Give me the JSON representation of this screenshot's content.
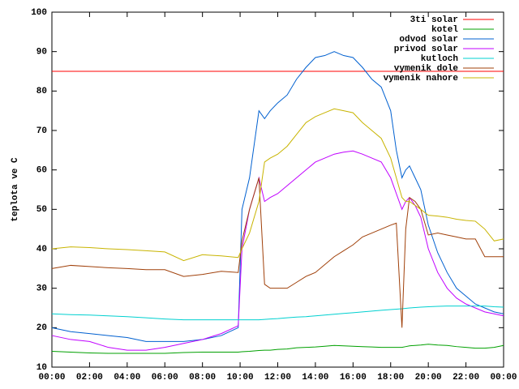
{
  "chart_data": {
    "type": "line",
    "ylabel": "teplota ve C",
    "x": [
      0,
      1,
      2,
      3,
      4,
      5,
      6,
      7,
      8,
      9,
      9.9,
      10.1,
      10.5,
      11,
      11.3,
      11.6,
      12,
      12.5,
      13,
      13.5,
      14,
      14.5,
      15,
      15.5,
      16,
      16.5,
      17,
      17.5,
      18,
      18.3,
      18.6,
      18.8,
      19,
      19.3,
      19.6,
      20,
      20.5,
      21,
      21.5,
      22,
      22.5,
      23,
      23.5,
      24
    ],
    "xlim": [
      0,
      24
    ],
    "xticks": [
      {
        "value": 0,
        "label": "00:00"
      },
      {
        "value": 2,
        "label": "02:00"
      },
      {
        "value": 4,
        "label": "04:00"
      },
      {
        "value": 6,
        "label": "06:00"
      },
      {
        "value": 8,
        "label": "08:00"
      },
      {
        "value": 10,
        "label": "10:00"
      },
      {
        "value": 12,
        "label": "12:00"
      },
      {
        "value": 14,
        "label": "14:00"
      },
      {
        "value": 16,
        "label": "16:00"
      },
      {
        "value": 18,
        "label": "18:00"
      },
      {
        "value": 20,
        "label": "20:00"
      },
      {
        "value": 22,
        "label": "22:00"
      },
      {
        "value": 24,
        "label": "00:00"
      }
    ],
    "ylim": [
      10,
      100
    ],
    "yticks": [
      10,
      20,
      30,
      40,
      50,
      60,
      70,
      80,
      90,
      100
    ],
    "legend": "top-right",
    "series": [
      {
        "name": "3ti solar",
        "color": "#ff0000",
        "values": [
          85,
          85,
          85,
          85,
          85,
          85,
          85,
          85,
          85,
          85,
          85,
          85,
          85,
          85,
          85,
          85,
          85,
          85,
          85,
          85,
          85,
          85,
          85,
          85,
          85,
          85,
          85,
          85,
          85,
          85,
          85,
          85,
          85,
          85,
          85,
          85,
          85,
          85,
          85,
          85,
          85,
          85,
          85,
          85
        ]
      },
      {
        "name": "kotel",
        "color": "#00a000",
        "values": [
          14,
          13.8,
          13.6,
          13.5,
          13.5,
          13.5,
          13.5,
          13.7,
          13.8,
          13.8,
          13.8,
          13.9,
          14,
          14.2,
          14.3,
          14.3,
          14.5,
          14.6,
          14.9,
          15,
          15.1,
          15.3,
          15.5,
          15.4,
          15.3,
          15.2,
          15.1,
          15,
          15,
          15,
          15,
          15.2,
          15.4,
          15.5,
          15.6,
          15.8,
          15.6,
          15.5,
          15.2,
          15,
          14.8,
          14.8,
          15,
          15.5
        ]
      },
      {
        "name": "odvod solar",
        "color": "#0060d0",
        "values": [
          20,
          19,
          18.5,
          18,
          17.5,
          16.5,
          16.5,
          16.5,
          17,
          18,
          20,
          50,
          58,
          75,
          73,
          75,
          77,
          79,
          83,
          86,
          88.5,
          89,
          90,
          89,
          88.5,
          86,
          83,
          81,
          75,
          65,
          58,
          60,
          61,
          58,
          55,
          46,
          39,
          34,
          30,
          28,
          26,
          25,
          24,
          23.5
        ]
      },
      {
        "name": "privod solar",
        "color": "#c000ff",
        "values": [
          18,
          17,
          16.5,
          15,
          14.3,
          14.3,
          15,
          16,
          17,
          18.5,
          20.5,
          40,
          50,
          58,
          52,
          53,
          54,
          56,
          58,
          60,
          62,
          63,
          64,
          64.5,
          64.8,
          64,
          63,
          62,
          58,
          54,
          50,
          52,
          53,
          51,
          48,
          40,
          34,
          30,
          27.5,
          26,
          25,
          24,
          23.5,
          23
        ]
      },
      {
        "name": "kutloch",
        "color": "#00d0d0",
        "values": [
          23.5,
          23.3,
          23.2,
          23,
          22.8,
          22.5,
          22.2,
          22,
          22,
          22,
          22,
          22,
          22,
          22,
          22.1,
          22.2,
          22.3,
          22.5,
          22.7,
          22.8,
          23,
          23.2,
          23.4,
          23.6,
          23.8,
          24,
          24.2,
          24.4,
          24.6,
          24.7,
          24.8,
          24.9,
          25,
          25.1,
          25.2,
          25.3,
          25.4,
          25.5,
          25.5,
          25.5,
          25.5,
          25.5,
          25.3,
          25.2
        ]
      },
      {
        "name": "vymenik dole",
        "color": "#a0400a",
        "values": [
          35,
          35.8,
          35.5,
          35.2,
          35,
          34.7,
          34.7,
          33,
          33.5,
          34.3,
          34,
          42,
          50,
          58,
          31,
          30,
          30,
          30,
          31.5,
          33,
          34,
          36,
          38,
          39.5,
          41,
          43,
          44,
          45,
          46,
          46.5,
          20,
          45,
          53,
          52,
          50,
          43.5,
          44,
          43.5,
          43,
          42.5,
          42.5,
          38,
          38,
          38
        ]
      },
      {
        "name": "vymenik nahore",
        "color": "#c8b400",
        "values": [
          40,
          40.5,
          40.3,
          40,
          39.8,
          39.5,
          39.2,
          37,
          38.5,
          38.2,
          37.8,
          40,
          44,
          52,
          62,
          63,
          64,
          66,
          69,
          72,
          73.5,
          74.5,
          75.5,
          75,
          74.5,
          72,
          70,
          68,
          63,
          58,
          53,
          52,
          52,
          51,
          50,
          48.5,
          48.3,
          48,
          47.5,
          47.2,
          47,
          45,
          42,
          42.5
        ]
      }
    ]
  }
}
